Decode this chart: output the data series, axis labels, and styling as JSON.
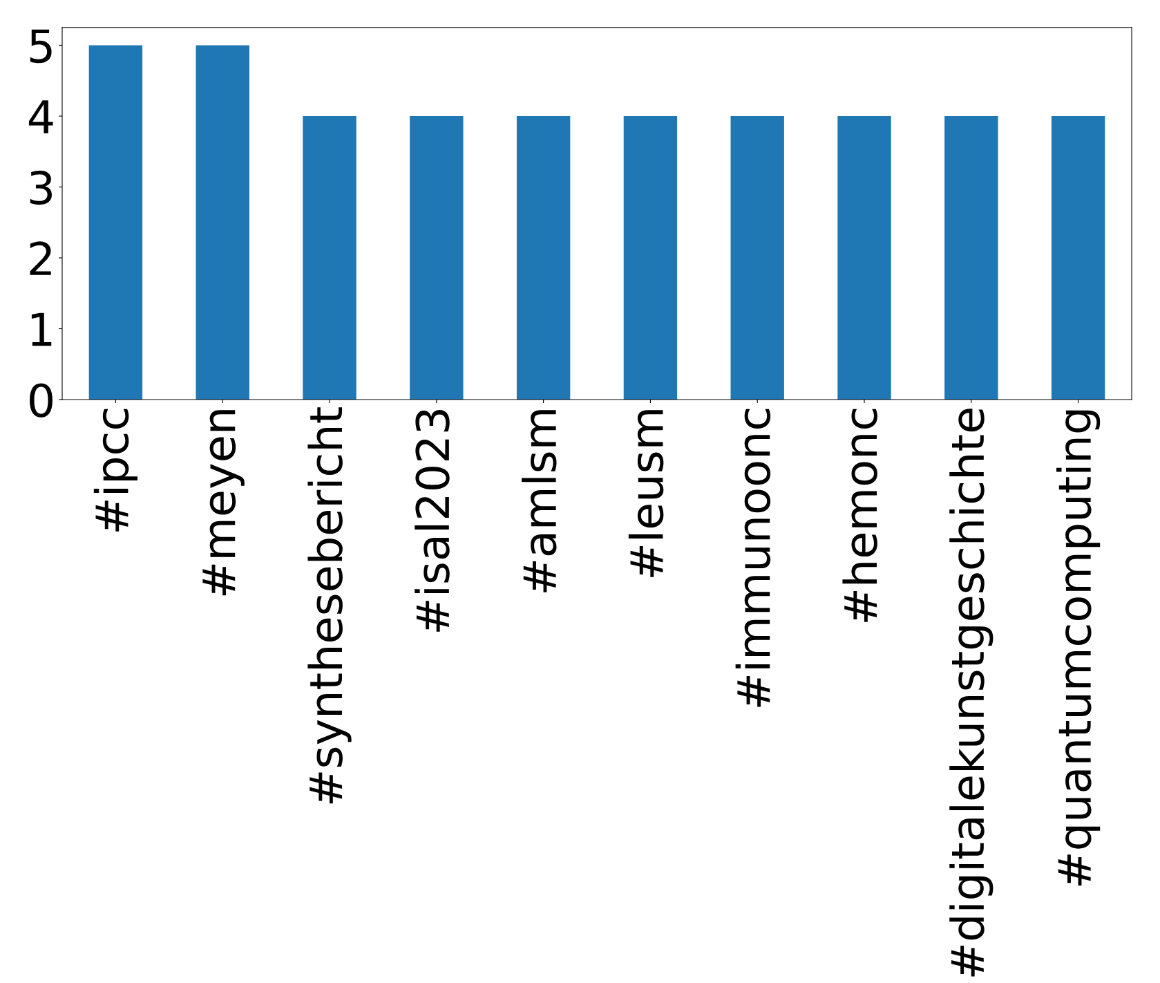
{
  "chart_data": {
    "type": "bar",
    "categories": [
      "#ipcc",
      "#meyen",
      "#synthesebericht",
      "#isal2023",
      "#amlsm",
      "#leusm",
      "#immunoonc",
      "#hemonc",
      "#digitalekunstgeschichte",
      "#quantumcomputing"
    ],
    "values": [
      5,
      5,
      4,
      4,
      4,
      4,
      4,
      4,
      4,
      4
    ],
    "color": "#1f77b4",
    "ylim": [
      0,
      5.25
    ],
    "yticks": [
      0,
      1,
      2,
      3,
      4,
      5
    ],
    "grid": false,
    "legend": false
  }
}
